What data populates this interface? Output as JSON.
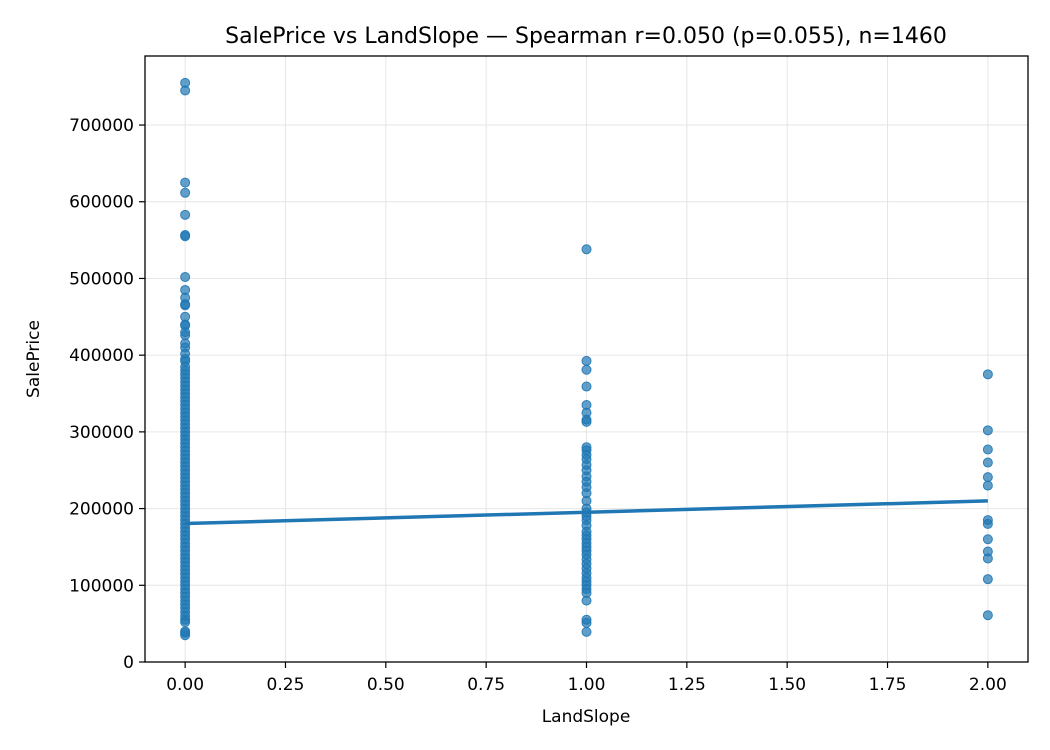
{
  "chart_data": {
    "type": "scatter",
    "title": "SalePrice vs LandSlope — Spearman r=0.050 (p=0.055), n=1460",
    "xlabel": "LandSlope",
    "ylabel": "SalePrice",
    "xlim": [
      -0.1,
      2.1
    ],
    "ylim": [
      0,
      790000
    ],
    "xticks": [
      0.0,
      0.25,
      0.5,
      0.75,
      1.0,
      1.25,
      1.5,
      1.75,
      2.0
    ],
    "xtick_labels": [
      "0.00",
      "0.25",
      "0.50",
      "0.75",
      "1.00",
      "1.25",
      "1.50",
      "1.75",
      "2.00"
    ],
    "yticks": [
      0,
      100000,
      200000,
      300000,
      400000,
      500000,
      600000,
      700000
    ],
    "ytick_labels": [
      "0",
      "100000",
      "200000",
      "300000",
      "400000",
      "500000",
      "600000",
      "700000"
    ],
    "grid": true,
    "point_color": "#1f77b4",
    "series": [
      {
        "points": [
          [
            0,
            755000
          ],
          [
            0,
            745000
          ],
          [
            0,
            625000
          ],
          [
            0,
            611657
          ],
          [
            0,
            582933
          ],
          [
            0,
            556581
          ],
          [
            0,
            555000
          ],
          [
            0,
            501837
          ],
          [
            0,
            485000
          ],
          [
            0,
            475000
          ],
          [
            0,
            466500
          ],
          [
            0,
            465000
          ],
          [
            0,
            450000
          ],
          [
            0,
            440000
          ],
          [
            0,
            438780
          ],
          [
            0,
            430000
          ],
          [
            0,
            426000
          ],
          [
            0,
            415298
          ],
          [
            0,
            410000
          ],
          [
            0,
            402000
          ],
          [
            0,
            395000
          ],
          [
            0,
            392000
          ],
          [
            0,
            385000
          ],
          [
            0,
            380000
          ],
          [
            0,
            375000
          ],
          [
            0,
            370000
          ],
          [
            0,
            365000
          ],
          [
            0,
            360000
          ],
          [
            0,
            355000
          ],
          [
            0,
            350000
          ],
          [
            0,
            345000
          ],
          [
            0,
            340000
          ],
          [
            0,
            335000
          ],
          [
            0,
            330000
          ],
          [
            0,
            325000
          ],
          [
            0,
            320000
          ],
          [
            0,
            315000
          ],
          [
            0,
            310000
          ],
          [
            0,
            305000
          ],
          [
            0,
            300000
          ],
          [
            0,
            295000
          ],
          [
            0,
            290000
          ],
          [
            0,
            285000
          ],
          [
            0,
            280000
          ],
          [
            0,
            275000
          ],
          [
            0,
            270000
          ],
          [
            0,
            265000
          ],
          [
            0,
            260000
          ],
          [
            0,
            255000
          ],
          [
            0,
            250000
          ],
          [
            0,
            245000
          ],
          [
            0,
            240000
          ],
          [
            0,
            235000
          ],
          [
            0,
            230000
          ],
          [
            0,
            225000
          ],
          [
            0,
            220000
          ],
          [
            0,
            215000
          ],
          [
            0,
            210000
          ],
          [
            0,
            205000
          ],
          [
            0,
            200000
          ],
          [
            0,
            195000
          ],
          [
            0,
            190000
          ],
          [
            0,
            185000
          ],
          [
            0,
            180000
          ],
          [
            0,
            175000
          ],
          [
            0,
            170000
          ],
          [
            0,
            165000
          ],
          [
            0,
            160000
          ],
          [
            0,
            155000
          ],
          [
            0,
            150000
          ],
          [
            0,
            145000
          ],
          [
            0,
            140000
          ],
          [
            0,
            135000
          ],
          [
            0,
            130000
          ],
          [
            0,
            125000
          ],
          [
            0,
            120000
          ],
          [
            0,
            115000
          ],
          [
            0,
            110000
          ],
          [
            0,
            105000
          ],
          [
            0,
            100000
          ],
          [
            0,
            95000
          ],
          [
            0,
            90000
          ],
          [
            0,
            85000
          ],
          [
            0,
            80000
          ],
          [
            0,
            75000
          ],
          [
            0,
            70000
          ],
          [
            0,
            65000
          ],
          [
            0,
            60000
          ],
          [
            0,
            55000
          ],
          [
            0,
            52000
          ],
          [
            0,
            40000
          ],
          [
            0,
            37900
          ],
          [
            0,
            34900
          ],
          [
            1,
            538000
          ],
          [
            1,
            392500
          ],
          [
            1,
            381000
          ],
          [
            1,
            359100
          ],
          [
            1,
            335000
          ],
          [
            1,
            325000
          ],
          [
            1,
            316000
          ],
          [
            1,
            313000
          ],
          [
            1,
            280000
          ],
          [
            1,
            276000
          ],
          [
            1,
            270000
          ],
          [
            1,
            264500
          ],
          [
            1,
            257000
          ],
          [
            1,
            250000
          ],
          [
            1,
            242000
          ],
          [
            1,
            235000
          ],
          [
            1,
            228000
          ],
          [
            1,
            220000
          ],
          [
            1,
            210000
          ],
          [
            1,
            200000
          ],
          [
            1,
            195000
          ],
          [
            1,
            190000
          ],
          [
            1,
            185000
          ],
          [
            1,
            178000
          ],
          [
            1,
            170000
          ],
          [
            1,
            165000
          ],
          [
            1,
            160000
          ],
          [
            1,
            155000
          ],
          [
            1,
            150000
          ],
          [
            1,
            145000
          ],
          [
            1,
            140000
          ],
          [
            1,
            134000
          ],
          [
            1,
            128000
          ],
          [
            1,
            122000
          ],
          [
            1,
            116000
          ],
          [
            1,
            110000
          ],
          [
            1,
            105000
          ],
          [
            1,
            100000
          ],
          [
            1,
            95000
          ],
          [
            1,
            90000
          ],
          [
            1,
            80000
          ],
          [
            1,
            55000
          ],
          [
            1,
            51000
          ],
          [
            1,
            39300
          ],
          [
            2,
            375000
          ],
          [
            2,
            302000
          ],
          [
            2,
            277000
          ],
          [
            2,
            260000
          ],
          [
            2,
            241000
          ],
          [
            2,
            230000
          ],
          [
            2,
            185000
          ],
          [
            2,
            180000
          ],
          [
            2,
            160000
          ],
          [
            2,
            144000
          ],
          [
            2,
            135000
          ],
          [
            2,
            108000
          ],
          [
            2,
            61000
          ]
        ]
      }
    ],
    "trend_line": {
      "x": [
        0,
        2
      ],
      "y": [
        180500,
        210000
      ]
    }
  }
}
